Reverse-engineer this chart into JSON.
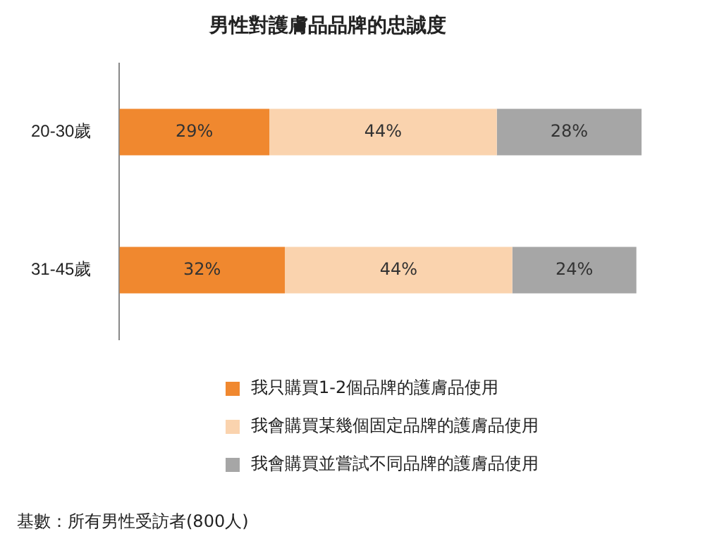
{
  "chart_data": {
    "type": "bar",
    "orientation": "horizontal",
    "stacked": true,
    "tick_labels": "y",
    "title": "男性對護膚品品牌的忠誠度",
    "categories": [
      "20-30歲",
      "31-45歲"
    ],
    "series": [
      {
        "name": "我只購買1-2個品牌的護膚品使用",
        "color": "#f0882f",
        "values": [
          29,
          32
        ],
        "value_labels": [
          "29%",
          "32%"
        ]
      },
      {
        "name": "我會購買某幾個固定品牌的護膚品使用",
        "color": "#fad3ae",
        "values": [
          44,
          44
        ],
        "value_labels": [
          "44%",
          "44%"
        ]
      },
      {
        "name": "我會購買並嘗試不同品牌的護膚品使用",
        "color": "#a6a6a6",
        "values": [
          28,
          24
        ],
        "value_labels": [
          "28%",
          "24%"
        ]
      }
    ],
    "legend": "bottom",
    "annotations": [
      "基數：所有男性受訪者(800人)"
    ]
  }
}
